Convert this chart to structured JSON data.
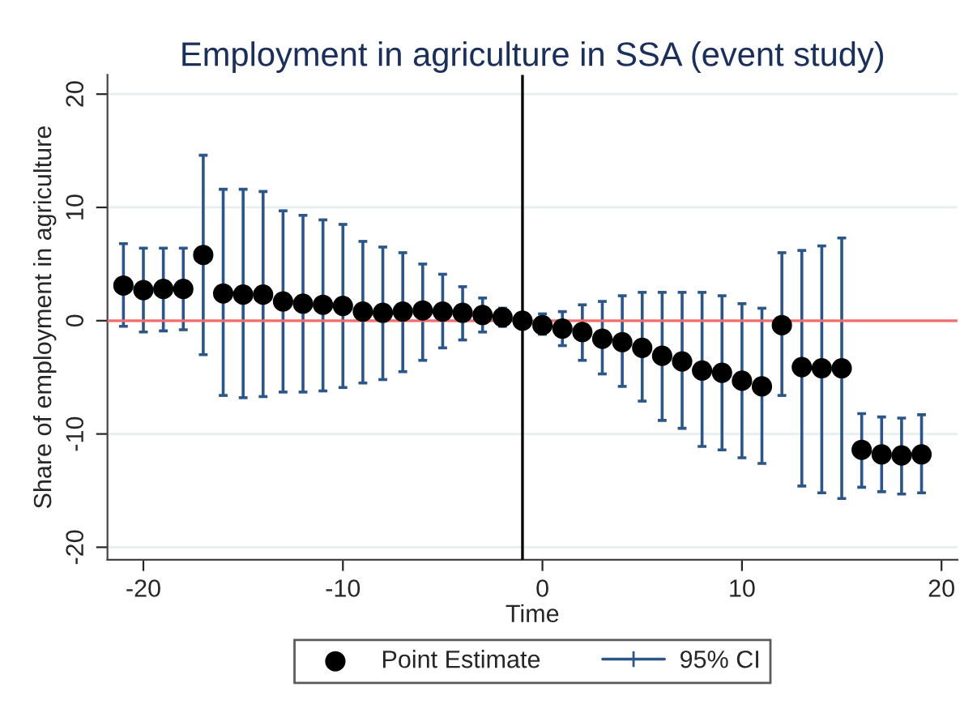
{
  "chart_data": {
    "type": "scatter",
    "title": "Employment in agriculture in SSA (event study)",
    "xlabel": "Time",
    "ylabel": "Share of employment in agriculture",
    "x": [
      -21,
      -20,
      -19,
      -18,
      -17,
      -16,
      -15,
      -14,
      -13,
      -12,
      -11,
      -10,
      -9,
      -8,
      -7,
      -6,
      -5,
      -4,
      -3,
      -2,
      -1,
      0,
      1,
      2,
      3,
      4,
      5,
      6,
      7,
      8,
      9,
      10,
      11,
      12,
      13,
      14,
      15,
      16,
      17,
      18,
      19
    ],
    "series": [
      {
        "name": "Point Estimate",
        "color": "#000000",
        "values": [
          3.1,
          2.7,
          2.8,
          2.8,
          5.8,
          2.4,
          2.3,
          2.3,
          1.7,
          1.5,
          1.4,
          1.3,
          0.8,
          0.7,
          0.8,
          0.9,
          0.8,
          0.7,
          0.5,
          0.3,
          0,
          -0.4,
          -0.7,
          -1.0,
          -1.6,
          -1.9,
          -2.4,
          -3.1,
          -3.6,
          -4.4,
          -4.6,
          -5.3,
          -5.8,
          -0.4,
          -4.1,
          -4.2,
          -4.2,
          -11.4,
          -11.8,
          -11.9,
          -11.8
        ],
        "errors": [
          [
            -0.5,
            6.8
          ],
          [
            -1.0,
            6.4
          ],
          [
            -0.9,
            6.4
          ],
          [
            -0.8,
            6.4
          ],
          [
            -3.0,
            14.6
          ],
          [
            -6.6,
            11.6
          ],
          [
            -6.8,
            11.6
          ],
          [
            -6.7,
            11.4
          ],
          [
            -6.3,
            9.7
          ],
          [
            -6.3,
            9.3
          ],
          [
            -6.2,
            8.9
          ],
          [
            -5.9,
            8.5
          ],
          [
            -5.5,
            7.0
          ],
          [
            -5.2,
            6.5
          ],
          [
            -4.5,
            6.0
          ],
          [
            -3.5,
            5.0
          ],
          [
            -2.4,
            4.1
          ],
          [
            -1.7,
            3.0
          ],
          [
            -1.0,
            2.0
          ],
          [
            -0.5,
            1.1
          ],
          null,
          [
            -1.2,
            0.6
          ],
          [
            -2.2,
            0.8
          ],
          [
            -3.5,
            1.4
          ],
          [
            -4.7,
            1.7
          ],
          [
            -5.8,
            2.2
          ],
          [
            -7.1,
            2.5
          ],
          [
            -8.8,
            2.5
          ],
          [
            -9.5,
            2.5
          ],
          [
            -11.1,
            2.5
          ],
          [
            -11.4,
            2.2
          ],
          [
            -12.1,
            1.5
          ],
          [
            -12.6,
            1.1
          ],
          [
            -6.6,
            6.0
          ],
          [
            -14.6,
            6.2
          ],
          [
            -15.2,
            6.6
          ],
          [
            -15.7,
            7.3
          ],
          [
            -14.7,
            -8.2
          ],
          [
            -15.1,
            -8.5
          ],
          [
            -15.3,
            -8.6
          ],
          [
            -15.2,
            -8.3
          ]
        ]
      }
    ],
    "annotations": [
      "95% CI"
    ],
    "xlim": [
      -21.8,
      20.8
    ],
    "xticks": [
      -20,
      -10,
      0,
      10,
      20
    ],
    "ylim": [
      -21.1,
      21.7
    ],
    "yticks": [
      -20,
      -10,
      0,
      10,
      20
    ],
    "ref_lines": [
      {
        "axis": "y",
        "value": 0,
        "color": "#f26d6d"
      },
      {
        "axis": "x",
        "value": -1,
        "color": "#000000"
      }
    ],
    "grid": "y",
    "legend": "bottom",
    "marker": "circle"
  }
}
